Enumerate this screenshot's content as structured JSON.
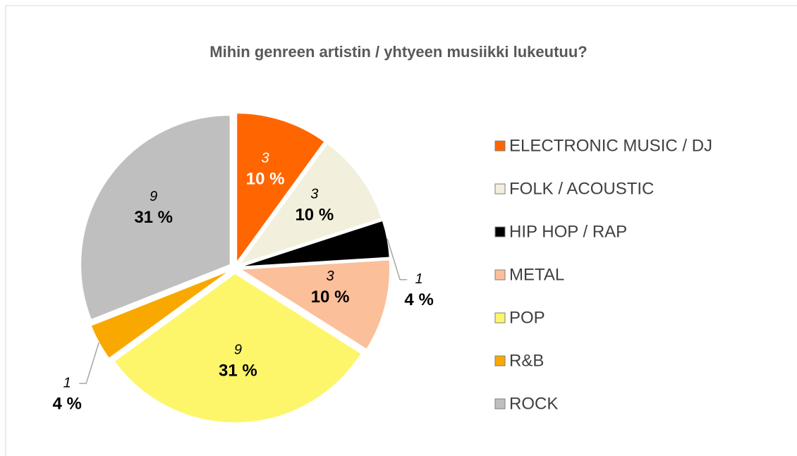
{
  "chart_data": {
    "type": "pie",
    "title": "Mihin genreen artistin / yhtyeen musiikki lukeutuu?",
    "categories": [
      "ELECTRONIC MUSIC / DJ",
      "FOLK / ACOUSTIC",
      "HIP HOP / RAP",
      "METAL",
      "POP",
      "R&B",
      "ROCK"
    ],
    "values": [
      10,
      10,
      4,
      10,
      31,
      4,
      31
    ],
    "value_labels": [
      "10 %",
      "10 %",
      "4 %",
      "10 %",
      "31 %",
      "4 %",
      "31 %"
    ],
    "counts": [
      3,
      3,
      1,
      3,
      9,
      1,
      9
    ],
    "colors": [
      "#ff6600",
      "#f2f0dc",
      "#000000",
      "#fbbf9a",
      "#fdf66b",
      "#f9a800",
      "#bfbfbf"
    ],
    "legend": "right"
  }
}
